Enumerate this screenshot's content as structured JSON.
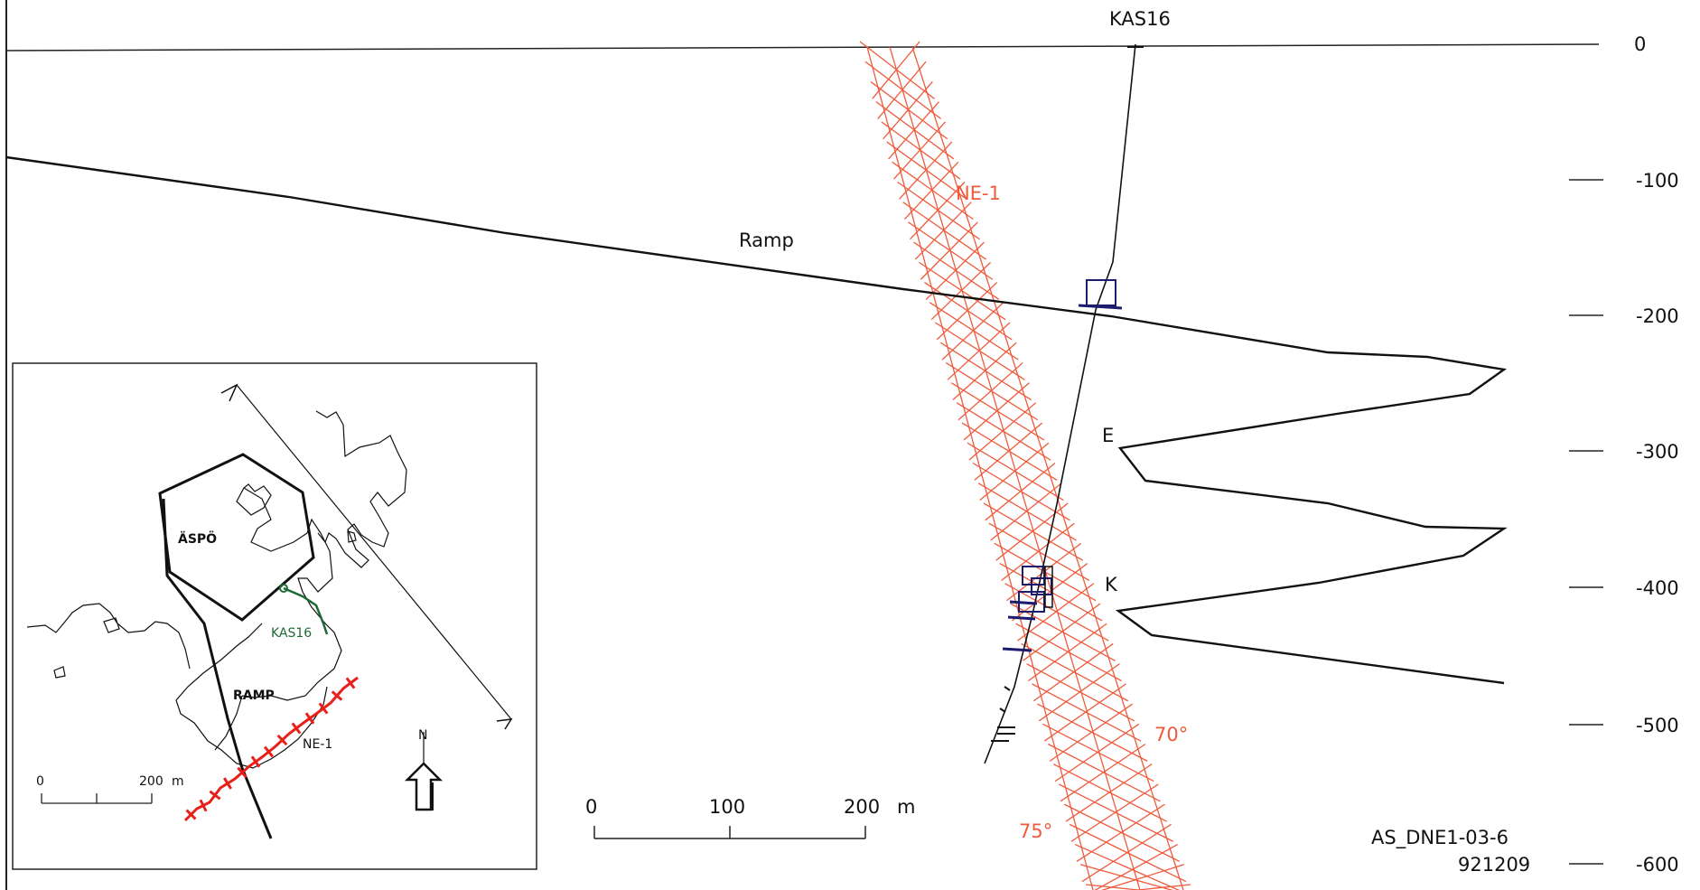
{
  "section": {
    "borehole_label": "KAS16",
    "ramp_label": "Ramp",
    "zone_label": "NE-1",
    "ramp_level_labels": [
      "E",
      "K"
    ],
    "angle_labels": [
      "70°",
      "75°"
    ],
    "depth_axis": {
      "unit": "m",
      "ticks": [
        "0",
        "-100",
        "-200",
        "-300",
        "-400",
        "-500",
        "-600"
      ],
      "range": [
        0,
        -600
      ]
    },
    "scale_bar": {
      "labels": [
        "0",
        "100",
        "200",
        "m"
      ],
      "length_m": 200
    },
    "drawing_id": "AS_DNE1-03-6",
    "date_code": "921209"
  },
  "inset_map": {
    "island_label": "ÄSPÖ",
    "borehole_label": "KAS16",
    "ramp_label": "RAMP",
    "zone_label": "NE-1",
    "north_label": "N",
    "scale_bar": {
      "labels": [
        "0",
        "200",
        "m"
      ],
      "length_m": 200
    }
  },
  "colors": {
    "zone_red": "#ef5a3c",
    "inset_zone_red": "#e8201a",
    "borehole_box_blue": "#1c1c6e",
    "borehole_green": "#1d6b34"
  }
}
